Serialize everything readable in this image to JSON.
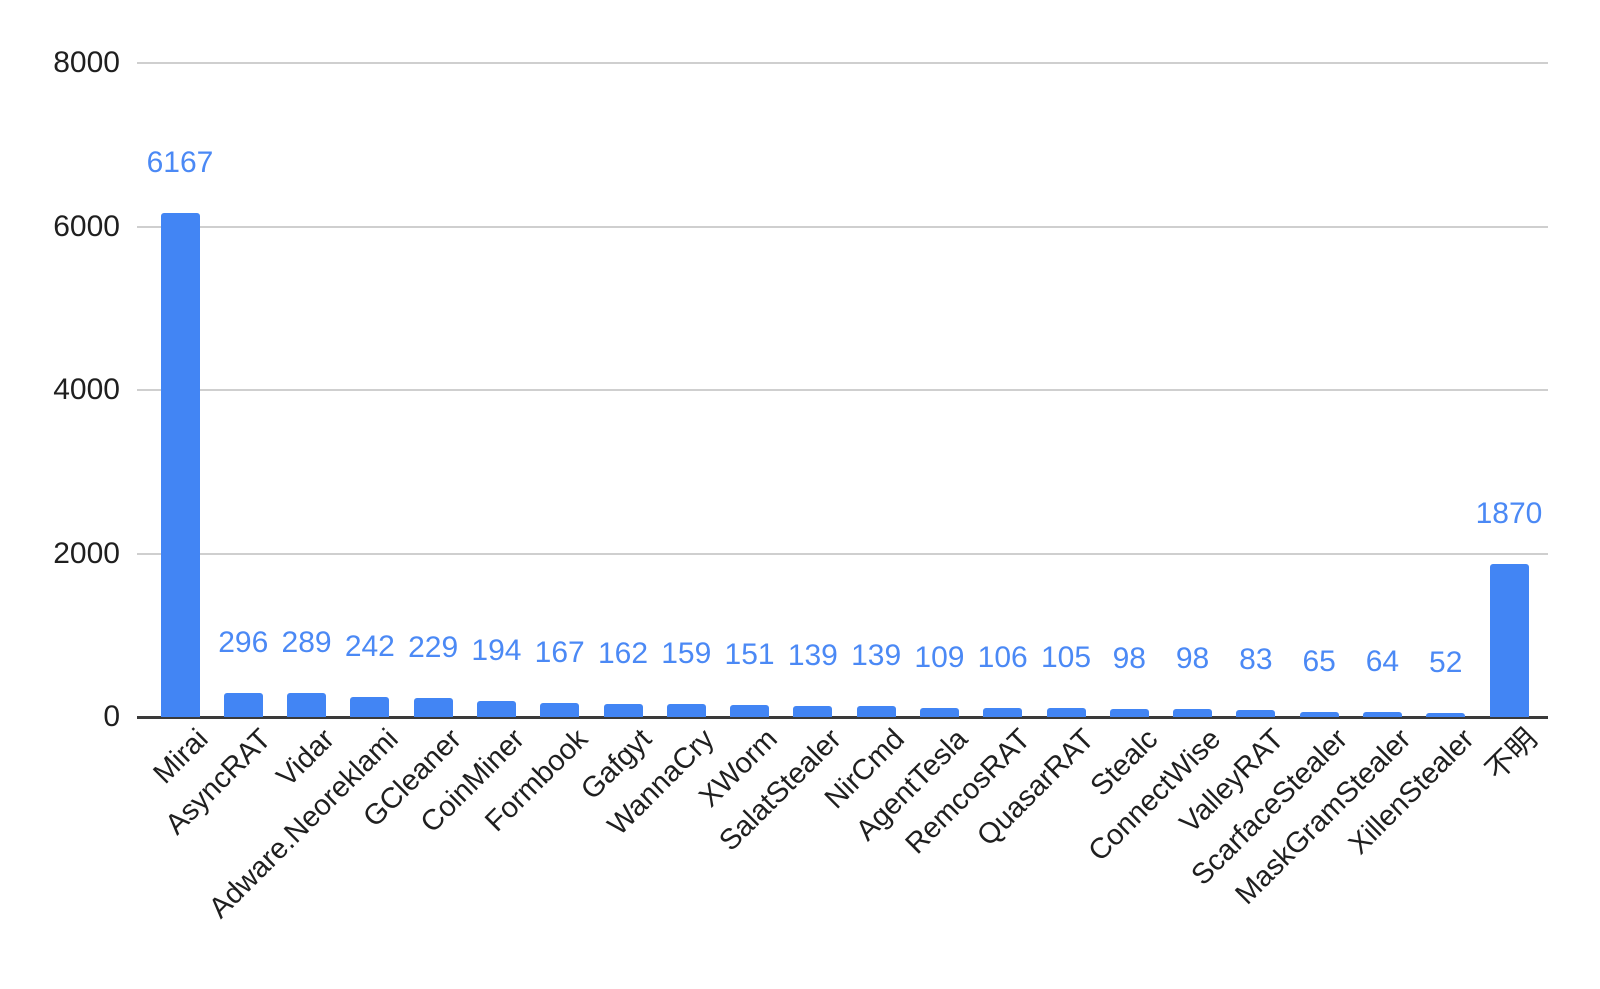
{
  "chart_data": {
    "type": "bar",
    "title": "",
    "xlabel": "",
    "ylabel": "",
    "categories": [
      "Mirai",
      "AsyncRAT",
      "Vidar",
      "Adware.Neoreklami",
      "GCleaner",
      "CoinMiner",
      "Formbook",
      "Gafgyt",
      "WannaCry",
      "XWorm",
      "SalatStealer",
      "NirCmd",
      "AgentTesla",
      "RemcosRAT",
      "QuasarRAT",
      "Stealc",
      "ConnectWise",
      "ValleyRAT",
      "ScarfaceStealer",
      "MaskGramStealer",
      "XillenStealer",
      "不明"
    ],
    "values": [
      6167,
      296,
      289,
      242,
      229,
      194,
      167,
      162,
      159,
      151,
      139,
      139,
      109,
      106,
      105,
      98,
      98,
      83,
      65,
      64,
      52,
      1870
    ],
    "data_labels": [
      "6167",
      "296",
      "289",
      "242",
      "229",
      "194",
      "167",
      "162",
      "159",
      "151",
      "139",
      "139",
      "109",
      "106",
      "105",
      "98",
      "98",
      "83",
      "65",
      "64",
      "52",
      "1870"
    ],
    "y_ticks": [
      0,
      2000,
      4000,
      6000,
      8000
    ],
    "y_tick_labels": [
      "0",
      "2000",
      "4000",
      "6000",
      "8000"
    ],
    "ylim": [
      0,
      8000
    ],
    "grid": true,
    "legend_position": "none",
    "x_label_rotation_deg": 45,
    "colors": {
      "bar": "#4285f4",
      "annotation_text": "#4b89f5",
      "tick_text": "#1f1f1f",
      "gridline": "#cfcfcf",
      "baseline": "#3a3a3a",
      "background": "#ffffff"
    }
  }
}
